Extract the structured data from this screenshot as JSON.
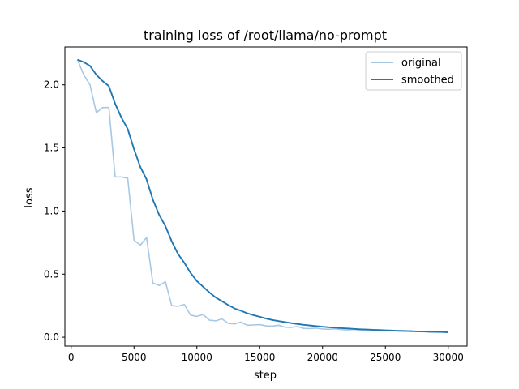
{
  "chart_data": {
    "type": "line",
    "title": "training loss of /root/llama/no-prompt",
    "xlabel": "step",
    "ylabel": "loss",
    "xlim": [
      -500,
      31500
    ],
    "ylim": [
      -0.07,
      2.3
    ],
    "xticks": [
      {
        "value": 0,
        "label": "0"
      },
      {
        "value": 5000,
        "label": "5000"
      },
      {
        "value": 10000,
        "label": "10000"
      },
      {
        "value": 15000,
        "label": "15000"
      },
      {
        "value": 20000,
        "label": "20000"
      },
      {
        "value": 25000,
        "label": "25000"
      },
      {
        "value": 30000,
        "label": "30000"
      }
    ],
    "yticks": [
      {
        "value": 0.0,
        "label": "0.0"
      },
      {
        "value": 0.5,
        "label": "0.5"
      },
      {
        "value": 1.0,
        "label": "1.0"
      },
      {
        "value": 1.5,
        "label": "1.5"
      },
      {
        "value": 2.0,
        "label": "2.0"
      }
    ],
    "grid": false,
    "legend_position": "upper-right",
    "x": [
      500,
      1000,
      1500,
      2000,
      2500,
      3000,
      3500,
      4000,
      4500,
      5000,
      5500,
      6000,
      6500,
      7000,
      7500,
      8000,
      8500,
      9000,
      9500,
      10000,
      10500,
      11000,
      11500,
      12000,
      12500,
      13000,
      13500,
      14000,
      14500,
      15000,
      15500,
      16000,
      16500,
      17000,
      17500,
      18000,
      18500,
      19000,
      19500,
      20000,
      20500,
      21000,
      21500,
      22000,
      22500,
      23000,
      23500,
      24000,
      24500,
      25000,
      25500,
      26000,
      26500,
      27000,
      27500,
      28000,
      28500,
      29000,
      29500,
      30000
    ],
    "series": [
      {
        "name": "original",
        "color": "#a6c8e4",
        "values": [
          2.2,
          2.08,
          2.0,
          1.78,
          1.82,
          1.82,
          1.27,
          1.27,
          1.26,
          0.77,
          0.73,
          0.79,
          0.43,
          0.41,
          0.44,
          0.25,
          0.245,
          0.26,
          0.175,
          0.165,
          0.18,
          0.135,
          0.13,
          0.145,
          0.11,
          0.105,
          0.12,
          0.095,
          0.097,
          0.1,
          0.09,
          0.088,
          0.095,
          0.08,
          0.078,
          0.085,
          0.07,
          0.068,
          0.072,
          0.065,
          0.063,
          0.067,
          0.06,
          0.058,
          0.062,
          0.055,
          0.054,
          0.057,
          0.05,
          0.05,
          0.052,
          0.048,
          0.047,
          0.049,
          0.045,
          0.044,
          0.046,
          0.042,
          0.041,
          0.04
        ]
      },
      {
        "name": "smoothed",
        "color": "#1f77b4",
        "values": [
          2.2,
          2.18,
          2.15,
          2.08,
          2.03,
          1.99,
          1.85,
          1.74,
          1.65,
          1.49,
          1.35,
          1.25,
          1.09,
          0.97,
          0.88,
          0.76,
          0.66,
          0.59,
          0.51,
          0.445,
          0.4,
          0.355,
          0.315,
          0.285,
          0.255,
          0.228,
          0.21,
          0.19,
          0.175,
          0.162,
          0.148,
          0.137,
          0.128,
          0.12,
          0.112,
          0.105,
          0.098,
          0.093,
          0.088,
          0.083,
          0.079,
          0.076,
          0.072,
          0.069,
          0.066,
          0.063,
          0.061,
          0.059,
          0.057,
          0.055,
          0.053,
          0.051,
          0.05,
          0.048,
          0.046,
          0.045,
          0.043,
          0.042,
          0.041,
          0.039
        ]
      }
    ]
  }
}
